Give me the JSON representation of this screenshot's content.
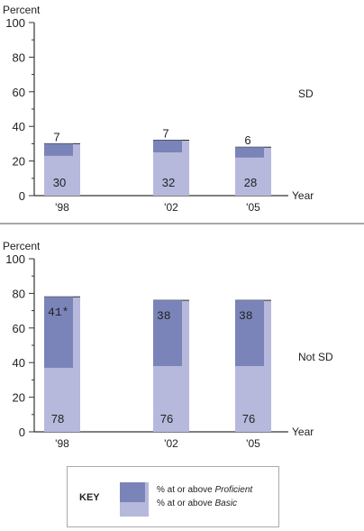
{
  "chart_data": [
    {
      "type": "bar",
      "panel_label": "SD",
      "ylabel": "Percent",
      "xlabel": "Year",
      "ylim": [
        0,
        100
      ],
      "yticks": [
        "0",
        "20",
        "40",
        "60",
        "80",
        "100"
      ],
      "categories": [
        "'98",
        "'02",
        "'05"
      ],
      "series": [
        {
          "name": "% at or above Basic",
          "values": [
            30,
            32,
            28
          ],
          "labels": [
            "30",
            "32",
            "28"
          ]
        },
        {
          "name": "% at or above Proficient",
          "values": [
            7,
            7,
            6
          ],
          "labels": [
            "7",
            "7",
            "6"
          ]
        }
      ]
    },
    {
      "type": "bar",
      "panel_label": "Not SD",
      "ylabel": "Percent",
      "xlabel": "Year",
      "ylim": [
        0,
        100
      ],
      "yticks": [
        "0",
        "20",
        "40",
        "60",
        "80",
        "100"
      ],
      "categories": [
        "'98",
        "'02",
        "'05"
      ],
      "series": [
        {
          "name": "% at or above Basic",
          "values": [
            78,
            76,
            76
          ],
          "labels": [
            "78",
            "76",
            "76"
          ]
        },
        {
          "name": "% at or above Proficient",
          "values": [
            41,
            38,
            38
          ],
          "labels": [
            "41*",
            "38",
            "38"
          ]
        }
      ]
    }
  ],
  "key": {
    "title": "KEY",
    "proficient_prefix": "% at or above ",
    "proficient_term": "Proficient",
    "basic_prefix": "% at or above ",
    "basic_term": "Basic"
  },
  "colors": {
    "basic": "#b6b9dc",
    "proficient": "#7b84b8",
    "axis": "#333333",
    "divider": "#8a8a8a"
  }
}
